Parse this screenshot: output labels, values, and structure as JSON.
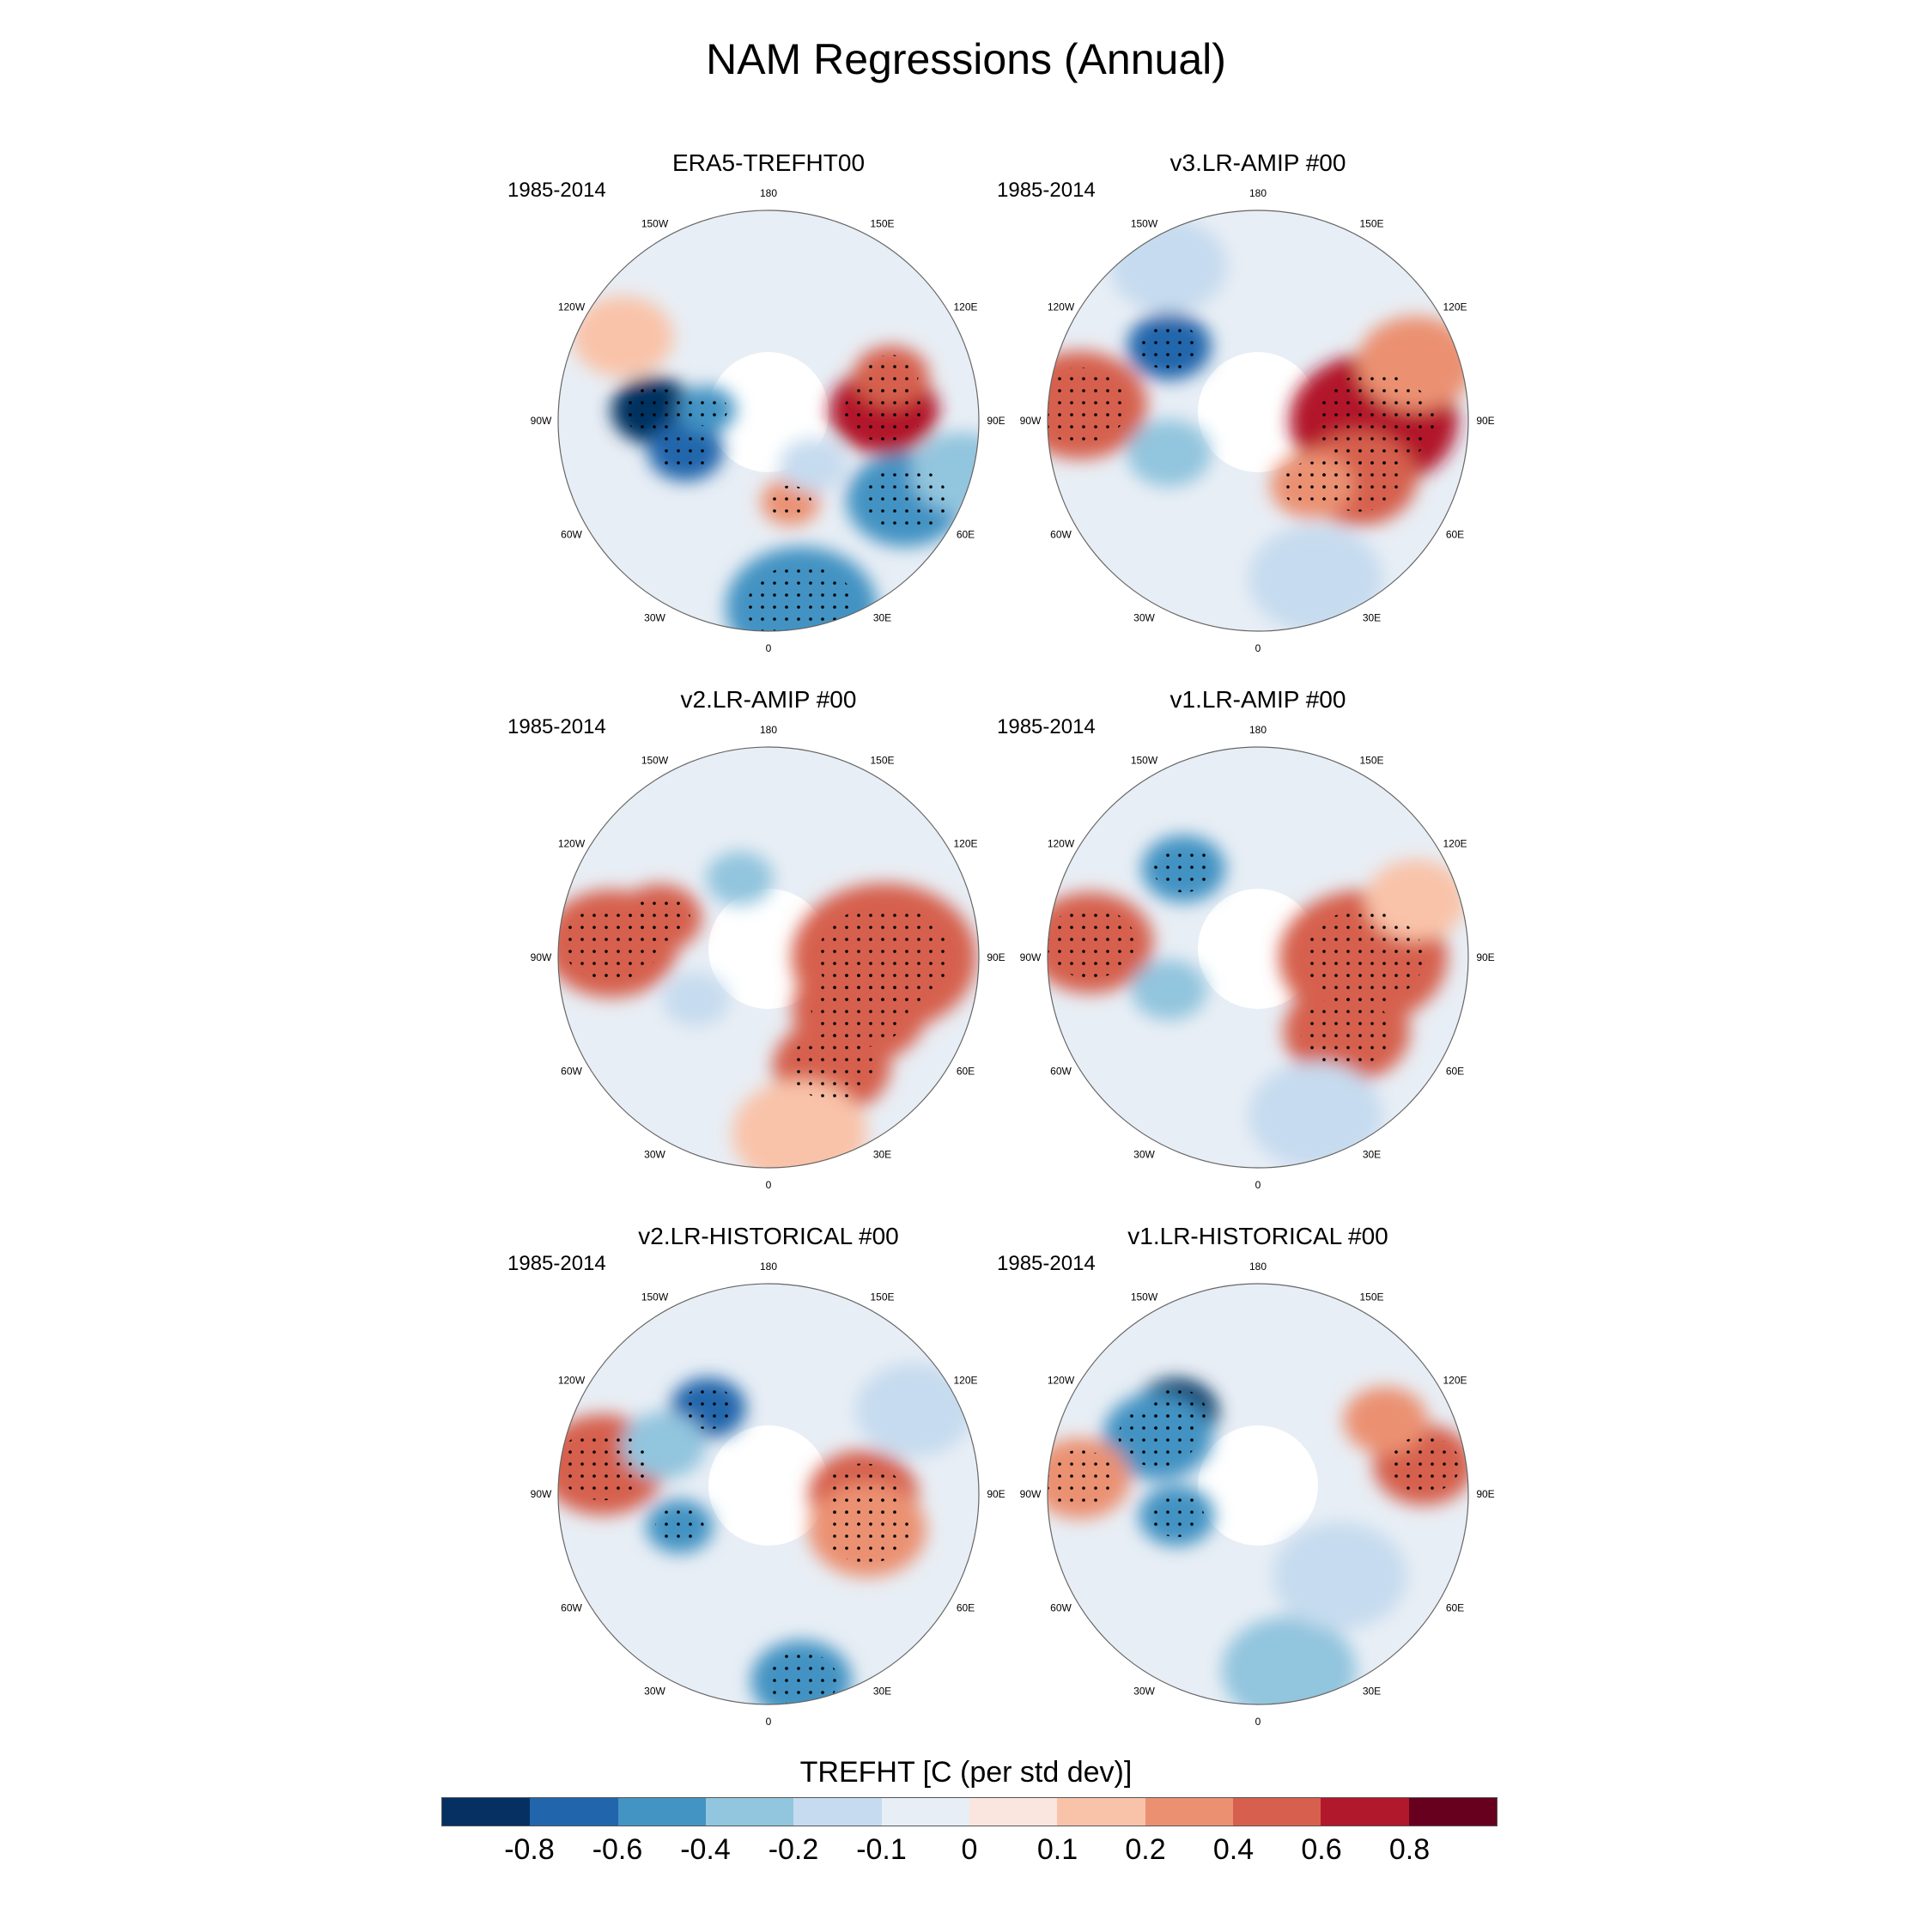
{
  "title": "NAM Regressions (Annual)",
  "panels": [
    {
      "title": "ERA5-TREFHT00",
      "period": "1985-2014",
      "blobs": [
        {
          "lon": -95,
          "r": 0.55,
          "size": 0.1,
          "v": -0.9
        },
        {
          "lon": -70,
          "r": 0.42,
          "size": 0.09,
          "v": -0.7
        },
        {
          "lon": -100,
          "r": 0.3,
          "size": 0.07,
          "v": -0.5
        },
        {
          "lon": 95,
          "r": 0.55,
          "size": 0.13,
          "v": 0.7
        },
        {
          "lon": 110,
          "r": 0.62,
          "size": 0.09,
          "v": 0.5
        },
        {
          "lon": 15,
          "r": 0.4,
          "size": 0.07,
          "v": 0.4
        },
        {
          "lon": 60,
          "r": 0.75,
          "size": 0.14,
          "v": -0.4
        },
        {
          "lon": 10,
          "r": 0.9,
          "size": 0.18,
          "v": -0.4
        },
        {
          "lon": 75,
          "r": 0.95,
          "size": 0.12,
          "v": -0.35
        },
        {
          "lon": -120,
          "r": 0.8,
          "size": 0.12,
          "v": 0.15
        },
        {
          "lon": 45,
          "r": 0.3,
          "size": 0.08,
          "v": -0.15
        }
      ]
    },
    {
      "title": "v3.LR-AMIP  #00",
      "period": "1985-2014",
      "blobs": [
        {
          "lon": -95,
          "r": 0.85,
          "size": 0.16,
          "v": 0.5
        },
        {
          "lon": -130,
          "r": 0.55,
          "size": 0.1,
          "v": -0.6
        },
        {
          "lon": -70,
          "r": 0.45,
          "size": 0.1,
          "v": -0.35
        },
        {
          "lon": 90,
          "r": 0.55,
          "size": 0.2,
          "v": 0.7
        },
        {
          "lon": 60,
          "r": 0.55,
          "size": 0.14,
          "v": 0.5
        },
        {
          "lon": 40,
          "r": 0.4,
          "size": 0.1,
          "v": 0.4
        },
        {
          "lon": 20,
          "r": 0.8,
          "size": 0.16,
          "v": -0.15
        },
        {
          "lon": 110,
          "r": 0.8,
          "size": 0.14,
          "v": 0.3
        },
        {
          "lon": -150,
          "r": 0.85,
          "size": 0.14,
          "v": -0.15
        }
      ]
    },
    {
      "title": "v2.LR-AMIP  #00",
      "period": "1985-2014",
      "blobs": [
        {
          "lon": -95,
          "r": 0.75,
          "size": 0.16,
          "v": 0.6
        },
        {
          "lon": -110,
          "r": 0.55,
          "size": 0.1,
          "v": 0.5
        },
        {
          "lon": 90,
          "r": 0.55,
          "size": 0.22,
          "v": 0.6
        },
        {
          "lon": 60,
          "r": 0.5,
          "size": 0.16,
          "v": 0.6
        },
        {
          "lon": 30,
          "r": 0.6,
          "size": 0.14,
          "v": 0.5
        },
        {
          "lon": -160,
          "r": 0.4,
          "size": 0.08,
          "v": -0.3
        },
        {
          "lon": -60,
          "r": 0.4,
          "size": 0.08,
          "v": -0.15
        },
        {
          "lon": 10,
          "r": 0.85,
          "size": 0.16,
          "v": 0.15
        }
      ]
    },
    {
      "title": "v1.LR-AMIP  #00",
      "period": "1985-2014",
      "blobs": [
        {
          "lon": -95,
          "r": 0.8,
          "size": 0.15,
          "v": 0.6
        },
        {
          "lon": -140,
          "r": 0.55,
          "size": 0.1,
          "v": -0.5
        },
        {
          "lon": -70,
          "r": 0.45,
          "size": 0.09,
          "v": -0.3
        },
        {
          "lon": 90,
          "r": 0.5,
          "size": 0.2,
          "v": 0.6
        },
        {
          "lon": 50,
          "r": 0.55,
          "size": 0.15,
          "v": 0.5
        },
        {
          "lon": 20,
          "r": 0.8,
          "size": 0.16,
          "v": -0.15
        },
        {
          "lon": 110,
          "r": 0.8,
          "size": 0.12,
          "v": 0.2
        }
      ]
    },
    {
      "title": "v2.LR-HISTORICAL  #00",
      "period": "1985-2014",
      "blobs": [
        {
          "lon": -100,
          "r": 0.8,
          "size": 0.15,
          "v": 0.5
        },
        {
          "lon": -145,
          "r": 0.5,
          "size": 0.09,
          "v": -0.7
        },
        {
          "lon": -115,
          "r": 0.55,
          "size": 0.1,
          "v": -0.3
        },
        {
          "lon": -70,
          "r": 0.45,
          "size": 0.08,
          "v": -0.5
        },
        {
          "lon": 90,
          "r": 0.45,
          "size": 0.13,
          "v": 0.6
        },
        {
          "lon": 70,
          "r": 0.5,
          "size": 0.14,
          "v": 0.4
        },
        {
          "lon": 10,
          "r": 0.9,
          "size": 0.12,
          "v": -0.4
        },
        {
          "lon": 120,
          "r": 0.8,
          "size": 0.14,
          "v": -0.1
        }
      ]
    },
    {
      "title": "v1.LR-HISTORICAL  #00",
      "period": "1985-2014",
      "blobs": [
        {
          "lon": -135,
          "r": 0.55,
          "size": 0.1,
          "v": -0.8
        },
        {
          "lon": -120,
          "r": 0.55,
          "size": 0.13,
          "v": -0.5
        },
        {
          "lon": -95,
          "r": 0.85,
          "size": 0.12,
          "v": 0.4
        },
        {
          "lon": -75,
          "r": 0.4,
          "size": 0.09,
          "v": -0.4
        },
        {
          "lon": 100,
          "r": 0.8,
          "size": 0.12,
          "v": 0.5
        },
        {
          "lon": 120,
          "r": 0.7,
          "size": 0.1,
          "v": 0.3
        },
        {
          "lon": 10,
          "r": 0.85,
          "size": 0.16,
          "v": -0.3
        },
        {
          "lon": 45,
          "r": 0.55,
          "size": 0.16,
          "v": -0.15
        }
      ]
    }
  ],
  "lon_labels": [
    "180",
    "150E",
    "120E",
    "90E",
    "60E",
    "30E",
    "0",
    "30W",
    "60W",
    "90W",
    "120W",
    "150W"
  ],
  "colorbar": {
    "title": "TREFHT [C (per std dev)]",
    "colors": [
      "#053061",
      "#2166ac",
      "#4393c3",
      "#92c5de",
      "#c6dbef",
      "#e8eef5",
      "#fbe6df",
      "#f9c3a9",
      "#eb9172",
      "#d6604d",
      "#b2182b",
      "#67001f"
    ],
    "ticks": [
      "-0.8",
      "-0.6",
      "-0.4",
      "-0.2",
      "-0.1",
      "0",
      "0.1",
      "0.2",
      "0.4",
      "0.6",
      "0.8"
    ]
  }
}
